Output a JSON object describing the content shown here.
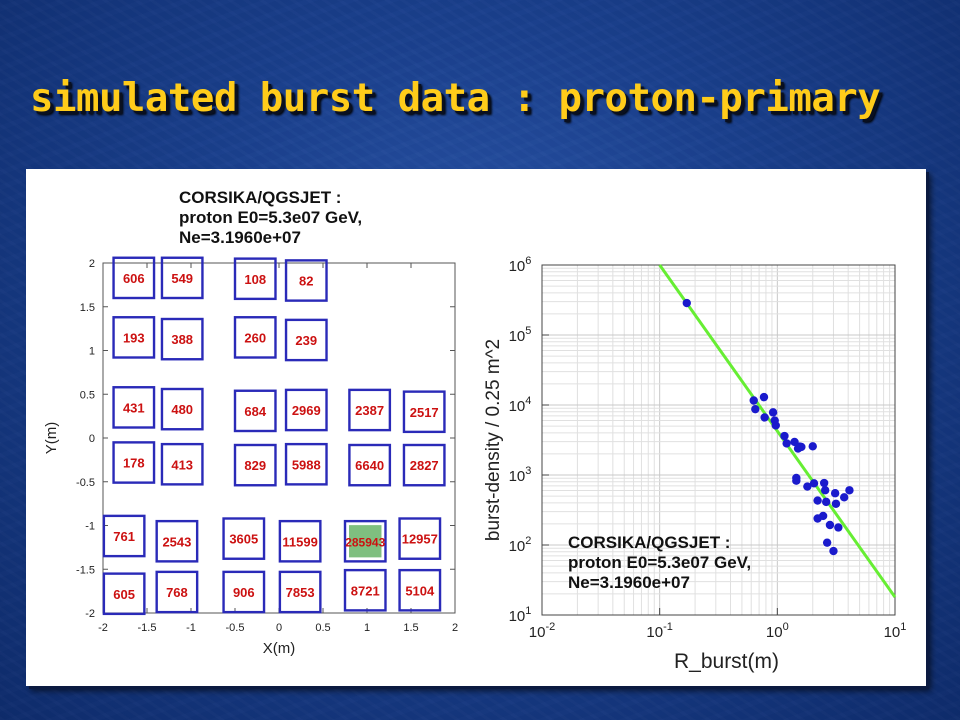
{
  "title": "simulated burst data : proton-primary",
  "left_annotation": [
    "CORSIKA/QGSJET :",
    "proton E0=5.3e07 GeV,",
    "Ne=3.1960e+07"
  ],
  "right_annotation": [
    "CORSIKA/QGSJET :",
    "proton E0=5.3e07 GeV,",
    "Ne=3.1960e+07"
  ],
  "colors": {
    "title": "#ffcc1a",
    "box_border": "#2a2ab8",
    "box_label": "#cc1111",
    "highlight_fill": "#7fbf7f",
    "points": "#1a1acc",
    "fit_line": "#66ee33"
  },
  "chart_data": [
    {
      "type": "table",
      "xlabel": "X(m)",
      "ylabel": "Y(m)",
      "xlim": [
        -2,
        2
      ],
      "ylim": [
        -2,
        2
      ],
      "xticks": [
        "-2",
        "-1.5",
        "-1",
        "-0.5",
        "0",
        "0.5",
        "1",
        "1.5",
        "2"
      ],
      "yticks": [
        "2",
        "1.5",
        "1",
        "0.5",
        "0",
        "-0.5",
        "-1",
        "-1.5",
        "-2"
      ],
      "cells": [
        {
          "label": "606",
          "x": -1.65,
          "y": 1.83
        },
        {
          "label": "549",
          "x": -1.1,
          "y": 1.83
        },
        {
          "label": "108",
          "x": -0.27,
          "y": 1.82
        },
        {
          "label": "82",
          "x": 0.31,
          "y": 1.8
        },
        {
          "label": "193",
          "x": -1.65,
          "y": 1.15
        },
        {
          "label": "388",
          "x": -1.1,
          "y": 1.13
        },
        {
          "label": "260",
          "x": -0.27,
          "y": 1.15
        },
        {
          "label": "239",
          "x": 0.31,
          "y": 1.12
        },
        {
          "label": "431",
          "x": -1.65,
          "y": 0.35
        },
        {
          "label": "480",
          "x": -1.1,
          "y": 0.33
        },
        {
          "label": "684",
          "x": -0.27,
          "y": 0.31
        },
        {
          "label": "2969",
          "x": 0.31,
          "y": 0.32
        },
        {
          "label": "2387",
          "x": 1.03,
          "y": 0.32
        },
        {
          "label": "2517",
          "x": 1.65,
          "y": 0.3
        },
        {
          "label": "178",
          "x": -1.65,
          "y": -0.28
        },
        {
          "label": "413",
          "x": -1.1,
          "y": -0.3
        },
        {
          "label": "829",
          "x": -0.27,
          "y": -0.31
        },
        {
          "label": "5988",
          "x": 0.31,
          "y": -0.3
        },
        {
          "label": "6640",
          "x": 1.03,
          "y": -0.31
        },
        {
          "label": "2827",
          "x": 1.65,
          "y": -0.31
        },
        {
          "label": "761",
          "x": -1.76,
          "y": -1.12
        },
        {
          "label": "2543",
          "x": -1.16,
          "y": -1.18
        },
        {
          "label": "3605",
          "x": -0.4,
          "y": -1.15
        },
        {
          "label": "11599",
          "x": 0.24,
          "y": -1.18
        },
        {
          "label": "285943",
          "x": 0.98,
          "y": -1.18,
          "highlight": true
        },
        {
          "label": "12957",
          "x": 1.6,
          "y": -1.15
        },
        {
          "label": "605",
          "x": -1.76,
          "y": -1.78
        },
        {
          "label": "768",
          "x": -1.16,
          "y": -1.76
        },
        {
          "label": "906",
          "x": -0.4,
          "y": -1.76
        },
        {
          "label": "7853",
          "x": 0.24,
          "y": -1.76
        },
        {
          "label": "8721",
          "x": 0.98,
          "y": -1.74
        },
        {
          "label": "5104",
          "x": 1.6,
          "y": -1.74
        }
      ]
    },
    {
      "type": "scatter",
      "xlabel": "R_burst(m)",
      "ylabel": "burst-density / 0.25 m^2",
      "xscale": "log",
      "yscale": "log",
      "xlim": [
        0.01,
        10
      ],
      "ylim": [
        10,
        1000000
      ],
      "grid": true,
      "xticks": [
        {
          "base": "10",
          "exp": "-2"
        },
        {
          "base": "10",
          "exp": "-1"
        },
        {
          "base": "10",
          "exp": "0"
        },
        {
          "base": "10",
          "exp": "1"
        }
      ],
      "yticks": [
        {
          "base": "10",
          "exp": "1"
        },
        {
          "base": "10",
          "exp": "2"
        },
        {
          "base": "10",
          "exp": "3"
        },
        {
          "base": "10",
          "exp": "4"
        },
        {
          "base": "10",
          "exp": "5"
        },
        {
          "base": "10",
          "exp": "6"
        }
      ],
      "series": [
        {
          "type": "scatter",
          "points": [
            [
              0.17,
              285943
            ],
            [
              0.63,
              11599
            ],
            [
              0.65,
              8721
            ],
            [
              0.77,
              12957
            ],
            [
              0.78,
              6640
            ],
            [
              0.92,
              7853
            ],
            [
              0.95,
              5988
            ],
            [
              0.97,
              5104
            ],
            [
              1.15,
              3605
            ],
            [
              1.2,
              2827
            ],
            [
              1.4,
              2969
            ],
            [
              1.5,
              2387
            ],
            [
              1.55,
              2543
            ],
            [
              1.6,
              2517
            ],
            [
              2.0,
              2570
            ],
            [
              1.45,
              906
            ],
            [
              1.45,
              829
            ],
            [
              1.8,
              684
            ],
            [
              2.05,
              761
            ],
            [
              2.5,
              768
            ],
            [
              2.55,
              606
            ],
            [
              3.1,
              549
            ],
            [
              3.7,
              480
            ],
            [
              4.1,
              605
            ],
            [
              2.2,
              431
            ],
            [
              2.6,
              413
            ],
            [
              3.15,
              388
            ],
            [
              2.45,
              260
            ],
            [
              2.2,
              239
            ],
            [
              3.3,
              178
            ],
            [
              2.8,
              193
            ],
            [
              2.65,
              108
            ],
            [
              3.0,
              82
            ]
          ]
        },
        {
          "type": "line",
          "points": [
            [
              0.1,
              1000000
            ],
            [
              10,
              18
            ]
          ]
        }
      ]
    }
  ]
}
